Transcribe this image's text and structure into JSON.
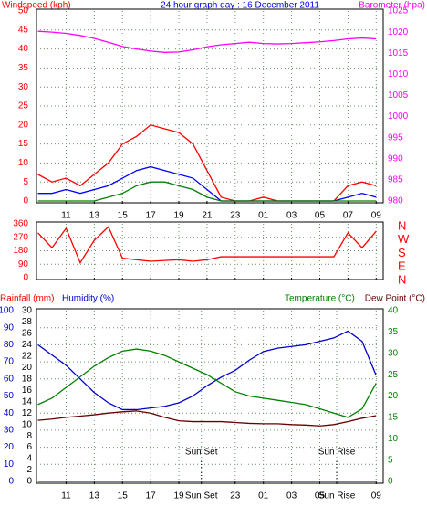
{
  "chart_data": [
    {
      "type": "line",
      "title": "24 hour graph day : 16 December 2011",
      "y_label": "Windspeed (kph)",
      "y2_label": "Barometer (hpa)",
      "xlim": [
        8.9,
        33.5
      ],
      "xticks": [
        11,
        13,
        15,
        17,
        19,
        21,
        23,
        {
          "value": 25,
          "label": "01"
        },
        {
          "value": 27,
          "label": "03"
        },
        {
          "value": 29,
          "label": "05"
        },
        {
          "value": 31,
          "label": "07"
        },
        {
          "value": 33,
          "label": "09"
        }
      ],
      "ylim": [
        0,
        50
      ],
      "yticks": [
        0,
        5,
        10,
        15,
        20,
        25,
        30,
        35,
        40,
        45,
        50
      ],
      "y2lim": [
        980,
        1025
      ],
      "y2ticks": [
        980,
        985,
        990,
        995,
        1000,
        1005,
        1010,
        1015,
        1020,
        1025
      ],
      "grid": true,
      "x": [
        9,
        10,
        11,
        12,
        13,
        14,
        15,
        16,
        17,
        18,
        19,
        20,
        21,
        22,
        23,
        24,
        25,
        26,
        27,
        28,
        29,
        30,
        31,
        32,
        33
      ],
      "series": [
        {
          "color": "#ff0000",
          "values": [
            7,
            5,
            6,
            4,
            7,
            10,
            15,
            17,
            20,
            19,
            18,
            15,
            8,
            1,
            0,
            0,
            1,
            0,
            0,
            0,
            0,
            0,
            4,
            5,
            4
          ]
        },
        {
          "color": "#0000ff",
          "values": [
            2,
            2,
            3,
            2,
            3,
            4,
            6,
            8,
            9,
            8,
            7,
            6,
            3,
            0,
            0,
            0,
            0,
            0,
            0,
            0,
            0,
            0,
            1,
            2,
            1
          ]
        },
        {
          "color": "#008000",
          "values": [
            0,
            0,
            0,
            0,
            0,
            1,
            2,
            4,
            5,
            5,
            4,
            3,
            1,
            0,
            0,
            0,
            0,
            0,
            0,
            0,
            0,
            0,
            0,
            0,
            0
          ]
        },
        {
          "color": "#ff00ff",
          "axis": "y2",
          "values": [
            1020.2,
            1020,
            1019.7,
            1019.2,
            1018.5,
            1017.6,
            1016.6,
            1016,
            1015.5,
            1015.2,
            1015.3,
            1015.8,
            1016.5,
            1017,
            1017.3,
            1017.6,
            1017.3,
            1017.2,
            1017.3,
            1017.5,
            1017.7,
            1018,
            1018.4,
            1018.6,
            1018.4
          ]
        }
      ]
    },
    {
      "type": "line",
      "xlim": [
        8.9,
        33.5
      ],
      "xticks": [
        11,
        13,
        15,
        17,
        19,
        21,
        23,
        25,
        27,
        29,
        31,
        33
      ],
      "ylim": [
        0,
        360
      ],
      "yticks": [
        0,
        90,
        180,
        270,
        360
      ],
      "y2lim": [
        0,
        360
      ],
      "y2ticks": [
        {
          "value": 360,
          "label": "N"
        },
        {
          "value": 270,
          "label": "W"
        },
        {
          "value": 180,
          "label": "S"
        },
        {
          "value": 90,
          "label": "E"
        },
        {
          "value": 0,
          "label": "N"
        }
      ],
      "grid": true,
      "x": [
        9,
        10,
        11,
        12,
        13,
        14,
        15,
        16,
        17,
        18,
        19,
        20,
        21,
        22,
        23,
        24,
        25,
        26,
        27,
        28,
        29,
        30,
        31,
        32,
        33
      ],
      "series": [
        {
          "color": "#ff0000",
          "values": [
            300,
            200,
            330,
            100,
            250,
            340,
            130,
            120,
            110,
            115,
            120,
            110,
            120,
            140,
            140,
            140,
            140,
            140,
            140,
            140,
            140,
            140,
            300,
            200,
            310
          ]
        }
      ]
    },
    {
      "type": "line",
      "y3_label": "Rainfall (mm)",
      "y_label": "Humidity (%)",
      "y2_label": "Temperature (°C)",
      "y4_label": "Dew Point (°C)",
      "xlim": [
        8.9,
        33.5
      ],
      "xticks": [
        11,
        13,
        15,
        17,
        19,
        {
          "value": 20.6,
          "label": "Sun Set"
        },
        23,
        {
          "value": 25,
          "label": "01"
        },
        {
          "value": 27,
          "label": "03"
        },
        {
          "value": 29,
          "label": "05"
        },
        {
          "value": 30.2,
          "label": "Sun Rise"
        },
        {
          "value": 33,
          "label": "09"
        }
      ],
      "ylim": [
        0,
        100
      ],
      "yticks": [
        0,
        10,
        20,
        30,
        40,
        50,
        60,
        70,
        80,
        90,
        100
      ],
      "y3lim": [
        0,
        30
      ],
      "y3ticks": [
        0,
        2,
        4,
        6,
        8,
        10,
        12,
        14,
        16,
        18,
        20,
        22,
        24,
        26,
        28,
        30
      ],
      "y2lim": [
        0,
        40
      ],
      "y2ticks": [
        0,
        5,
        10,
        15,
        20,
        25,
        30,
        35,
        40
      ],
      "grid": true,
      "annotations": [
        {
          "text": "Sun Set",
          "x": 20.6
        },
        {
          "text": "Sun Rise",
          "x": 30.2
        }
      ],
      "x": [
        9,
        10,
        11,
        12,
        13,
        14,
        15,
        16,
        17,
        18,
        19,
        20,
        21,
        22,
        23,
        24,
        25,
        26,
        27,
        28,
        29,
        30,
        31,
        32,
        33
      ],
      "series": [
        {
          "color": "#cc0000",
          "axis": "y3",
          "values": [
            0,
            0,
            0,
            0,
            0,
            0,
            0,
            0,
            0,
            0,
            0,
            0,
            0,
            0,
            0,
            0,
            0,
            0,
            0,
            0,
            0,
            0,
            0,
            0,
            0
          ]
        },
        {
          "color": "#0000cc",
          "values": [
            80,
            74,
            68,
            60,
            52,
            46,
            42,
            42,
            43,
            44,
            46,
            50,
            56,
            61,
            65,
            71,
            76,
            78,
            79,
            80,
            82,
            84,
            88,
            82,
            62
          ]
        },
        {
          "color": "#008000",
          "axis": "y2",
          "values": [
            18,
            19.5,
            22,
            24.5,
            27,
            29,
            30.5,
            31,
            30.5,
            29.5,
            28,
            26.5,
            25,
            23,
            21,
            20,
            19.5,
            19,
            18.5,
            18,
            17,
            16,
            15,
            17,
            23
          ]
        },
        {
          "color": "#660000",
          "axis": "y2",
          "values": [
            14.3,
            14.6,
            15,
            15.3,
            15.6,
            16,
            16.3,
            16.5,
            16,
            15,
            14.2,
            14,
            14,
            14,
            13.8,
            13.6,
            13.5,
            13.5,
            13.3,
            13.2,
            13,
            13.3,
            14,
            14.8,
            15.4
          ]
        }
      ]
    }
  ]
}
